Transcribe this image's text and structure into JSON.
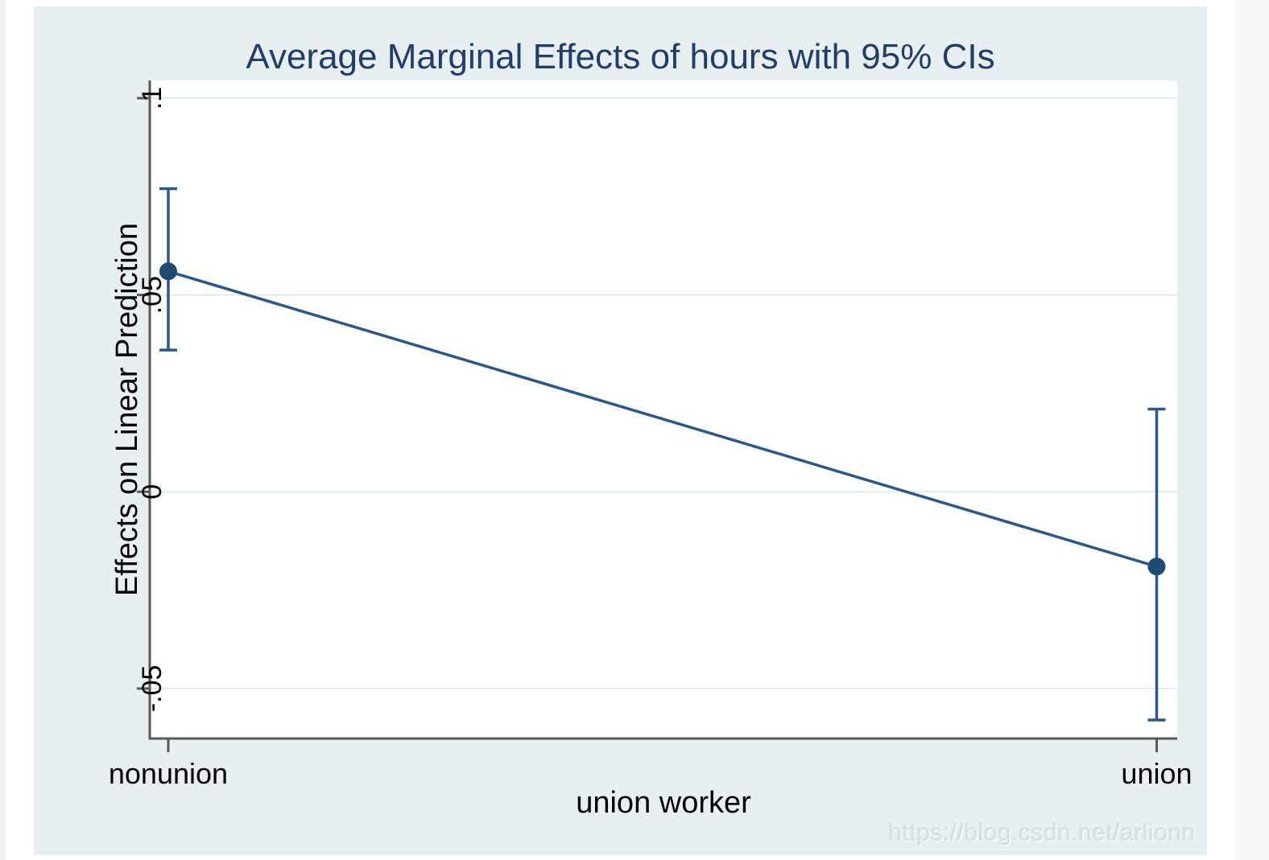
{
  "page": {
    "background": "#ffffff",
    "left_edge_color": "#f0f1f1",
    "right_gutter_color": "#f7f8f8"
  },
  "watermark": {
    "text": "https://blog.csdn.net/arlionn"
  },
  "chart_data": {
    "type": "line",
    "title": "Average Marginal Effects of hours with 95% CIs",
    "xlabel": "union worker",
    "ylabel": "Effects on Linear Prediction",
    "categories": [
      "nonunion",
      "union"
    ],
    "series": [
      {
        "name": "hours",
        "values": [
          0.056,
          -0.019
        ],
        "ci_low": [
          0.036,
          -0.058
        ],
        "ci_high": [
          0.077,
          0.021
        ]
      }
    ],
    "yticks": [
      {
        "value": 0.1,
        "label": ".1"
      },
      {
        "value": 0.05,
        "label": ".05"
      },
      {
        "value": 0,
        "label": "0"
      },
      {
        "value": -0.05,
        "label": "-.05"
      }
    ],
    "ylim": [
      -0.0627,
      0.1045
    ],
    "grid": true,
    "legend": "none",
    "ci_level": "95%",
    "colors": {
      "marker": "#1f4a72",
      "line": "#2b5886",
      "ci": "#2b5886",
      "background": "#e8eff2",
      "plot_background": "#ffffff",
      "gridline": "#e4eef1",
      "axis": "#58595b",
      "title_text": "#223e66",
      "text": "#000000",
      "watermark": "#d9e1e5"
    }
  }
}
